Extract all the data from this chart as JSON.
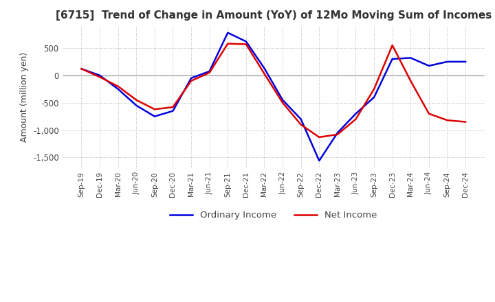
{
  "title": "[6715]  Trend of Change in Amount (YoY) of 12Mo Moving Sum of Incomes",
  "ylabel": "Amount (million yen)",
  "background_color": "#ffffff",
  "grid_color": "#aaaaaa",
  "ordinary_income_color": "#0000dd",
  "net_income_color": "#dd0000",
  "x_labels": [
    "Sep-19",
    "Dec-19",
    "Mar-20",
    "Jun-20",
    "Sep-20",
    "Dec-20",
    "Mar-21",
    "Jun-21",
    "Sep-21",
    "Dec-21",
    "Mar-22",
    "Jun-22",
    "Sep-22",
    "Dec-22",
    "Mar-23",
    "Jun-23",
    "Sep-23",
    "Dec-23",
    "Mar-24",
    "Jun-24",
    "Sep-24",
    "Dec-24"
  ],
  "ordinary_income": [
    120,
    0,
    -250,
    -550,
    -750,
    -650,
    -50,
    75,
    780,
    620,
    130,
    -450,
    -800,
    -1560,
    -1050,
    -700,
    -400,
    300,
    320,
    175,
    250,
    250
  ],
  "net_income": [
    120,
    -30,
    -200,
    -450,
    -620,
    -580,
    -100,
    50,
    580,
    570,
    30,
    -500,
    -900,
    -1130,
    -1080,
    -800,
    -250,
    550,
    -100,
    -700,
    -820,
    -850
  ]
}
